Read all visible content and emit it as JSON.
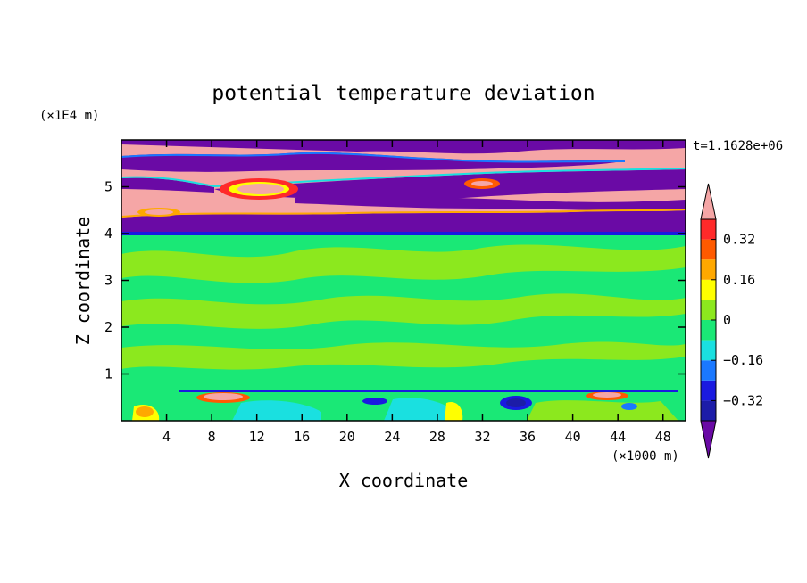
{
  "chart_data": {
    "type": "heatmap",
    "title": "potential temperature deviation",
    "xlabel": "X coordinate",
    "ylabel": "Z coordinate",
    "x_unit": "(×1000 m)",
    "y_unit": "(×1E4 m)",
    "time_label": "t=1.1628e+06",
    "xlim": [
      0,
      50
    ],
    "ylim": [
      0,
      6
    ],
    "x_ticks": [
      4,
      8,
      12,
      16,
      20,
      24,
      28,
      32,
      36,
      40,
      44,
      48
    ],
    "y_ticks": [
      1,
      2,
      3,
      4,
      5
    ],
    "colorbar": {
      "levels": [
        -0.4,
        -0.32,
        -0.24,
        -0.16,
        -0.08,
        0,
        0.08,
        0.16,
        0.24,
        0.32,
        0.4
      ],
      "tick_values": [
        -0.32,
        -0.16,
        0,
        0.16,
        0.32
      ],
      "tick_labels": [
        "−0.32",
        "−0.16",
        "0",
        "0.16",
        "0.32"
      ],
      "colors": [
        "#6a0aa5",
        "#1c1ca8",
        "#1a1ae0",
        "#1a78ff",
        "#1ae0e0",
        "#1ae876",
        "#8ce81e",
        "#ffff00",
        "#ffa800",
        "#ff5a00",
        "#ff2a2a",
        "#f5a6a6"
      ],
      "extend": "both"
    },
    "regions": [
      {
        "zone": "upper layer (z > 4)",
        "pattern": "alternating bands of strong positive (pink) and strong negative (purple) deviation"
      },
      {
        "zone": "middle layer (0.6 < z < 4)",
        "pattern": "near-zero deviation, green / light green"
      },
      {
        "zone": "lower layer (z < 0.6)",
        "pattern": "mixed small cells, cyan to yellow, with blue and red spots"
      }
    ]
  }
}
